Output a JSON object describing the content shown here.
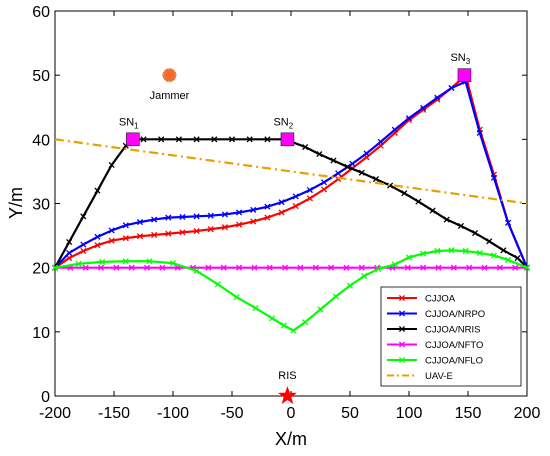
{
  "chart_data": {
    "type": "line",
    "xlabel": "X/m",
    "ylabel": "Y/m",
    "xlim": [
      -200,
      200
    ],
    "ylim": [
      0,
      60
    ],
    "x_ticks": [
      -200,
      -150,
      -100,
      -50,
      0,
      50,
      100,
      150,
      200
    ],
    "y_ticks": [
      0,
      10,
      20,
      30,
      40,
      50,
      60
    ],
    "x_tick_labels": [
      "-200",
      "-150",
      "-100",
      "-50",
      "0",
      "50",
      "100",
      "150",
      "200"
    ],
    "y_tick_labels": [
      "0",
      "10",
      "20",
      "30",
      "40",
      "50",
      "60"
    ],
    "grid": false,
    "legend_position": "lower-right",
    "series": [
      {
        "name": "CJJOA",
        "color": "#ff0000",
        "marker": "x",
        "points": [
          [
            -200,
            20
          ],
          [
            -188,
            21.5
          ],
          [
            -176,
            22.6
          ],
          [
            -164,
            23.5
          ],
          [
            -152,
            24.2
          ],
          [
            -140,
            24.6
          ],
          [
            -128,
            24.9
          ],
          [
            -116,
            25.1
          ],
          [
            -104,
            25.3
          ],
          [
            -92,
            25.5
          ],
          [
            -80,
            25.7
          ],
          [
            -68,
            26
          ],
          [
            -56,
            26.3
          ],
          [
            -44,
            26.7
          ],
          [
            -32,
            27.2
          ],
          [
            -20,
            27.8
          ],
          [
            -8,
            28.6
          ],
          [
            4,
            29.6
          ],
          [
            16,
            30.8
          ],
          [
            28,
            32.2
          ],
          [
            40,
            33.8
          ],
          [
            52,
            35.5
          ],
          [
            64,
            37.2
          ],
          [
            76,
            39
          ],
          [
            88,
            41
          ],
          [
            100,
            43
          ],
          [
            112,
            44.6
          ],
          [
            124,
            46.2
          ],
          [
            136,
            48
          ],
          [
            148,
            50
          ],
          [
            160,
            41.5
          ],
          [
            172,
            34.5
          ],
          [
            184,
            27
          ],
          [
            200,
            20
          ]
        ]
      },
      {
        "name": "CJJOA/NRPO",
        "color": "#0000ff",
        "marker": "x",
        "points": [
          [
            -200,
            20
          ],
          [
            -188,
            22.3
          ],
          [
            -176,
            23.6
          ],
          [
            -164,
            24.8
          ],
          [
            -152,
            25.8
          ],
          [
            -140,
            26.6
          ],
          [
            -128,
            27.1
          ],
          [
            -116,
            27.5
          ],
          [
            -104,
            27.8
          ],
          [
            -92,
            27.9
          ],
          [
            -80,
            28
          ],
          [
            -68,
            28.1
          ],
          [
            -56,
            28.3
          ],
          [
            -44,
            28.6
          ],
          [
            -32,
            29
          ],
          [
            -20,
            29.5
          ],
          [
            -8,
            30.2
          ],
          [
            4,
            31.1
          ],
          [
            16,
            32.1
          ],
          [
            28,
            33.3
          ],
          [
            40,
            34.7
          ],
          [
            52,
            36.2
          ],
          [
            64,
            37.8
          ],
          [
            76,
            39.6
          ],
          [
            88,
            41.5
          ],
          [
            100,
            43.3
          ],
          [
            112,
            44.9
          ],
          [
            124,
            46.5
          ],
          [
            136,
            48
          ],
          [
            148,
            49
          ],
          [
            160,
            41
          ],
          [
            172,
            34
          ],
          [
            184,
            27
          ],
          [
            200,
            20
          ]
        ]
      },
      {
        "name": "CJJOA/NRIS",
        "color": "#000000",
        "marker": "x",
        "points": [
          [
            -200,
            20
          ],
          [
            -188,
            24
          ],
          [
            -176,
            28
          ],
          [
            -164,
            32
          ],
          [
            -152,
            36
          ],
          [
            -140,
            39
          ],
          [
            -134,
            40
          ],
          [
            -125,
            40
          ],
          [
            -110,
            40
          ],
          [
            -95,
            40
          ],
          [
            -80,
            40
          ],
          [
            -65,
            40
          ],
          [
            -50,
            40
          ],
          [
            -35,
            40
          ],
          [
            -20,
            40
          ],
          [
            -5,
            40
          ],
          [
            12,
            38.8
          ],
          [
            24,
            37.7
          ],
          [
            36,
            36.7
          ],
          [
            48,
            35.7
          ],
          [
            60,
            34.8
          ],
          [
            72,
            33.8
          ],
          [
            84,
            32.8
          ],
          [
            96,
            31.6
          ],
          [
            108,
            30.3
          ],
          [
            120,
            28.9
          ],
          [
            132,
            27.5
          ],
          [
            144,
            26.5
          ],
          [
            156,
            25.4
          ],
          [
            168,
            24.1
          ],
          [
            180,
            22.7
          ],
          [
            192,
            21.5
          ],
          [
            200,
            20
          ]
        ]
      },
      {
        "name": "CJJOA/NFTO",
        "color": "#ff00ff",
        "marker": "x",
        "points": [
          [
            -200,
            20
          ],
          [
            -187,
            20
          ],
          [
            -174,
            20
          ],
          [
            -161,
            20
          ],
          [
            -148,
            20
          ],
          [
            -135,
            20
          ],
          [
            -122,
            20
          ],
          [
            -109,
            20
          ],
          [
            -96,
            20
          ],
          [
            -83,
            20
          ],
          [
            -70,
            20
          ],
          [
            -57,
            20
          ],
          [
            -44,
            20
          ],
          [
            -31,
            20
          ],
          [
            -18,
            20
          ],
          [
            -5,
            20
          ],
          [
            8,
            20
          ],
          [
            21,
            20
          ],
          [
            34,
            20
          ],
          [
            47,
            20
          ],
          [
            60,
            20
          ],
          [
            73,
            20
          ],
          [
            86,
            20
          ],
          [
            99,
            20
          ],
          [
            112,
            20
          ],
          [
            125,
            20
          ],
          [
            138,
            20
          ],
          [
            151,
            20
          ],
          [
            164,
            20
          ],
          [
            177,
            20
          ],
          [
            190,
            20
          ],
          [
            200,
            20
          ]
        ]
      },
      {
        "name": "CJJOA/NFLO",
        "color": "#00ff00",
        "marker": "x",
        "points": [
          [
            -200,
            20
          ],
          [
            -180,
            20.6
          ],
          [
            -160,
            20.9
          ],
          [
            -140,
            21
          ],
          [
            -120,
            21
          ],
          [
            -100,
            20.7
          ],
          [
            -80,
            19.5
          ],
          [
            -62,
            17.4
          ],
          [
            -46,
            15.4
          ],
          [
            -30,
            13.7
          ],
          [
            -16,
            12.1
          ],
          [
            -6,
            11
          ],
          [
            2,
            10.2
          ],
          [
            12,
            11.5
          ],
          [
            25,
            13.5
          ],
          [
            38,
            15.5
          ],
          [
            50,
            17.2
          ],
          [
            62,
            18.7
          ],
          [
            74,
            19.8
          ],
          [
            88,
            20.5
          ],
          [
            100,
            21.6
          ],
          [
            112,
            22.2
          ],
          [
            124,
            22.6
          ],
          [
            136,
            22.7
          ],
          [
            148,
            22.6
          ],
          [
            160,
            22.3
          ],
          [
            172,
            21.9
          ],
          [
            184,
            21.2
          ],
          [
            200,
            20
          ]
        ]
      },
      {
        "name": "UAV-E",
        "color": "#e8a000",
        "marker": "none",
        "dashed": true,
        "points": [
          [
            -200,
            40
          ],
          [
            200,
            30
          ]
        ]
      }
    ],
    "nodes": [
      {
        "label_main": "SN",
        "label_sub": "1",
        "x": -134,
        "y": 40,
        "color": "#ff00ff"
      },
      {
        "label_main": "SN",
        "label_sub": "2",
        "x": -3,
        "y": 40,
        "color": "#ff00ff"
      },
      {
        "label_main": "SN",
        "label_sub": "3",
        "x": 147,
        "y": 50,
        "color": "#ff00ff"
      }
    ],
    "jammer": {
      "label": "Jammer",
      "x": -103,
      "y": 50,
      "color": "#f26b2a"
    },
    "ris": {
      "label": "RIS",
      "x": -3,
      "y": 0,
      "color": "#ff0000"
    }
  }
}
